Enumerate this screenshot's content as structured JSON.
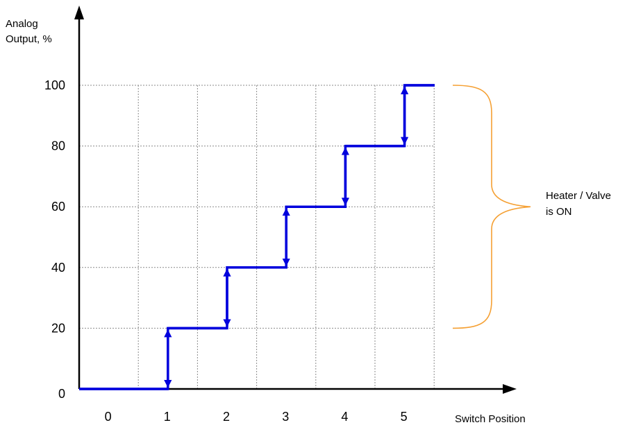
{
  "chart_data": {
    "type": "line",
    "title": "",
    "ylabel_lines": [
      "Analog",
      "Output, %"
    ],
    "xlabel": "Switch Position",
    "x_categories": [
      "0",
      "1",
      "2",
      "3",
      "4",
      "5"
    ],
    "y_ticks": [
      "0",
      "20",
      "40",
      "60",
      "80",
      "100"
    ],
    "ylim": [
      0,
      100
    ],
    "grid": true,
    "series": [
      {
        "color": "#0000dd",
        "step_values": [
          0,
          20,
          40,
          60,
          80,
          100
        ]
      }
    ],
    "transition_arrows_between_positions": [
      [
        0,
        1
      ],
      [
        1,
        2
      ],
      [
        2,
        3
      ],
      [
        3,
        4
      ],
      [
        4,
        5
      ]
    ],
    "annotation": {
      "text_lines": [
        "Heater / Valve",
        "is ON"
      ],
      "y_range": [
        20,
        100
      ],
      "brace_color": "#f5a033"
    }
  }
}
